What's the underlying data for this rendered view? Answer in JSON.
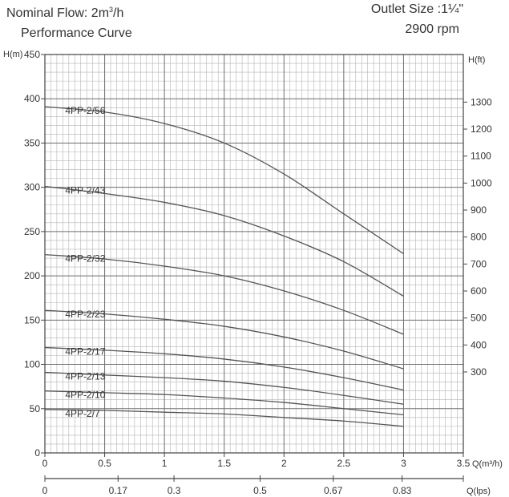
{
  "header": {
    "nominal_flow_text": "Nominal Flow: 2m",
    "nominal_flow_sup": "3",
    "nominal_flow_unit": "/h",
    "performance_label": "Performance Curve",
    "outlet_size": "Outlet Size :1¼\"",
    "speed": "2900 rpm"
  },
  "chart_data": {
    "type": "line",
    "title": "Performance Curve",
    "xlabel": "Q(m³/h)",
    "ylabel": "H(m)",
    "y2label": "H(ft)",
    "x2label": "Q(lps)",
    "xlim": [
      0,
      3.5
    ],
    "ylim": [
      0,
      450
    ],
    "x_ticks": [
      "0",
      "0.5",
      "1",
      "1.5",
      "2",
      "2.5",
      "3",
      "3.5"
    ],
    "x_tick_values": [
      0,
      0.5,
      1,
      1.5,
      2,
      2.5,
      3,
      3.5
    ],
    "y_ticks": [
      "0",
      "50",
      "100",
      "150",
      "200",
      "250",
      "300",
      "350",
      "400",
      "450"
    ],
    "y_tick_values": [
      0,
      50,
      100,
      150,
      200,
      250,
      300,
      350,
      400,
      450
    ],
    "y2_ticks": [
      "300",
      "400",
      "500",
      "600",
      "700",
      "800",
      "900",
      "1000",
      "1100",
      "1200",
      "1300"
    ],
    "y2_tick_values": [
      300,
      400,
      500,
      600,
      700,
      800,
      900,
      1000,
      1100,
      1200,
      1300
    ],
    "x2_ticks": [
      "0",
      "0.17",
      "0.3",
      "0.5",
      "0.67",
      "0.83"
    ],
    "x2_tick_values": [
      0,
      0.17,
      0.3,
      0.5,
      0.67,
      0.83
    ],
    "grid": true,
    "line_color": "#555555",
    "series": [
      {
        "name": "4PP-2/56",
        "x": [
          0,
          0.5,
          1,
          1.5,
          2,
          2.5,
          3
        ],
        "values": [
          391,
          385,
          372,
          350,
          315,
          270,
          225
        ]
      },
      {
        "name": "4PP-2/43",
        "x": [
          0,
          0.5,
          1,
          1.5,
          2,
          2.5,
          3
        ],
        "values": [
          301,
          293,
          283,
          268,
          245,
          216,
          177
        ]
      },
      {
        "name": "4PP-2/32",
        "x": [
          0,
          0.5,
          1,
          1.5,
          2,
          2.5,
          3
        ],
        "values": [
          224,
          219,
          211,
          200,
          183,
          161,
          134
        ]
      },
      {
        "name": "4PP-2/23",
        "x": [
          0,
          0.5,
          1,
          1.5,
          2,
          2.5,
          3
        ],
        "values": [
          161,
          157,
          151,
          143,
          131,
          115,
          95
        ]
      },
      {
        "name": "4PP-2/17",
        "x": [
          0,
          0.5,
          1,
          1.5,
          2,
          2.5,
          3
        ],
        "values": [
          119,
          116,
          112,
          106,
          97,
          85,
          71
        ]
      },
      {
        "name": "4PP-2/13",
        "x": [
          0,
          0.5,
          1,
          1.5,
          2,
          2.5,
          3
        ],
        "values": [
          91,
          88,
          85,
          81,
          74,
          65,
          55
        ]
      },
      {
        "name": "4PP-2/10",
        "x": [
          0,
          0.5,
          1,
          1.5,
          2,
          2.5,
          3
        ],
        "values": [
          70,
          68,
          66,
          62,
          57,
          50,
          43
        ]
      },
      {
        "name": "4PP-2/7",
        "x": [
          0,
          0.5,
          1,
          1.5,
          2,
          2.5,
          3
        ],
        "values": [
          49,
          48,
          46,
          44,
          40,
          36,
          30
        ]
      }
    ]
  }
}
